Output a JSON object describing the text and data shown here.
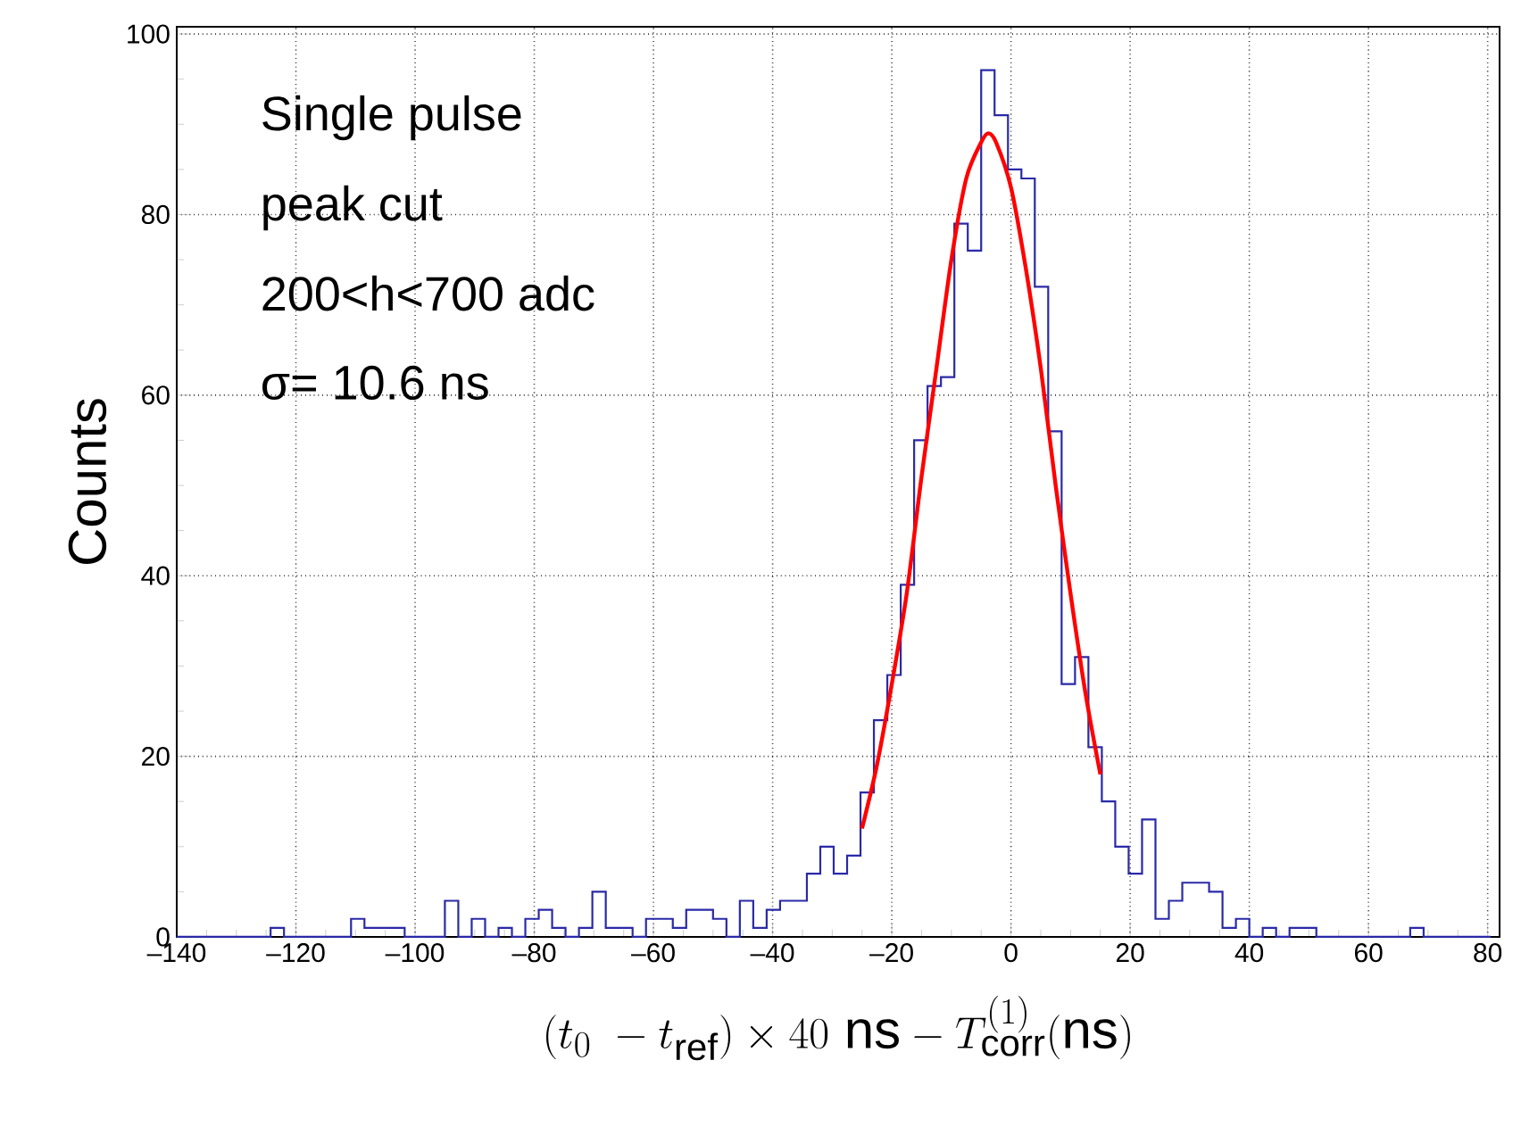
{
  "chart_data": {
    "type": "histogram",
    "xlabel": "(t_0\\;-t_{\\mathrm{ref}})\\times 40\\ \\mathrm{ns}-T_{\\mathrm{corr}}^{(1)}(\\mathsf{ns})",
    "ylabel": "Counts",
    "annotations": [
      "Single  pulse",
      "peak cut",
      "200<h<700 adc",
      "σ=  10.6 ns"
    ],
    "xlim": [
      -140,
      82
    ],
    "ylim": [
      0,
      100.8
    ],
    "xticks": [
      {
        "value": -140,
        "label": "–140"
      },
      {
        "value": -120,
        "label": "–120"
      },
      {
        "value": -100,
        "label": "–100"
      },
      {
        "value": -80,
        "label": "–80"
      },
      {
        "value": -60,
        "label": "–60"
      },
      {
        "value": -40,
        "label": "–40"
      },
      {
        "value": -20,
        "label": "–20"
      },
      0,
      20,
      40,
      60,
      80
    ],
    "yticks": [
      0,
      20,
      40,
      60,
      80,
      100
    ],
    "grid": true,
    "series": [
      {
        "color": "#2a2aa8",
        "bins": [
          -140,
          -137.75,
          -135.5,
          -133.25,
          -131,
          -128.75,
          -126.5,
          -124.25,
          -122,
          -119.75,
          -117.5,
          -115.25,
          -113,
          -110.75,
          -108.5,
          -106.25,
          -104,
          -101.75,
          -99.5,
          -97.25,
          -95,
          -92.75,
          -90.5,
          -88.25,
          -86,
          -83.75,
          -81.5,
          -79.25,
          -77,
          -74.75,
          -72.5,
          -70.25,
          -68,
          -65.75,
          -63.5,
          -61.25,
          -59,
          -56.75,
          -54.5,
          -52.25,
          -50,
          -47.75,
          -45.5,
          -43.25,
          -41,
          -38.75,
          -36.5,
          -34.25,
          -32,
          -29.75,
          -27.5,
          -25.25,
          -23,
          -20.75,
          -18.5,
          -16.25,
          -14,
          -11.75,
          -9.5,
          -7.25,
          -5,
          -2.75,
          -0.5,
          1.75,
          4,
          6.25,
          8.5,
          10.75,
          13,
          15.25,
          17.5,
          19.75,
          22,
          24.25,
          26.5,
          28.75,
          31,
          33.25,
          35.5,
          37.75,
          40,
          42.25,
          44.5,
          46.75,
          49,
          51.25,
          53.5,
          55.75,
          58,
          60.25,
          62.5,
          64.75,
          67,
          69.25,
          71.5,
          73.75,
          76,
          78.25,
          80.5
        ],
        "values": [
          0,
          0,
          0,
          0,
          0,
          0,
          0,
          1,
          0,
          0,
          0,
          0,
          0,
          2,
          1,
          1,
          1,
          0,
          0,
          0,
          4,
          0,
          2,
          0,
          1,
          0,
          2,
          3,
          1,
          0,
          1,
          5,
          1,
          1,
          0,
          2,
          2,
          1,
          3,
          3,
          2,
          0,
          4,
          1,
          3,
          4,
          4,
          7,
          10,
          7,
          9,
          16,
          24,
          29,
          39,
          55,
          61,
          62,
          79,
          76,
          96,
          91,
          85,
          84,
          72,
          56,
          28,
          31,
          21,
          15,
          10,
          7,
          13,
          2,
          4,
          6,
          6,
          5,
          1,
          2,
          0,
          1,
          0,
          1,
          1,
          0,
          0,
          0,
          0,
          0,
          0,
          0,
          1,
          0,
          0,
          0,
          0,
          0
        ]
      },
      {
        "type": "line",
        "color": "#ff0000",
        "x": [
          -25,
          -22.5,
          -20,
          -17.5,
          -15,
          -12.5,
          -10,
          -7.5,
          -5,
          -3.8,
          -2.5,
          0,
          2.5,
          5,
          7.5,
          10,
          12.5,
          15
        ],
        "values": [
          12,
          19,
          28,
          38,
          51,
          63,
          75,
          84,
          88,
          89,
          88,
          83,
          74,
          63,
          50,
          38,
          27,
          18
        ]
      }
    ]
  }
}
